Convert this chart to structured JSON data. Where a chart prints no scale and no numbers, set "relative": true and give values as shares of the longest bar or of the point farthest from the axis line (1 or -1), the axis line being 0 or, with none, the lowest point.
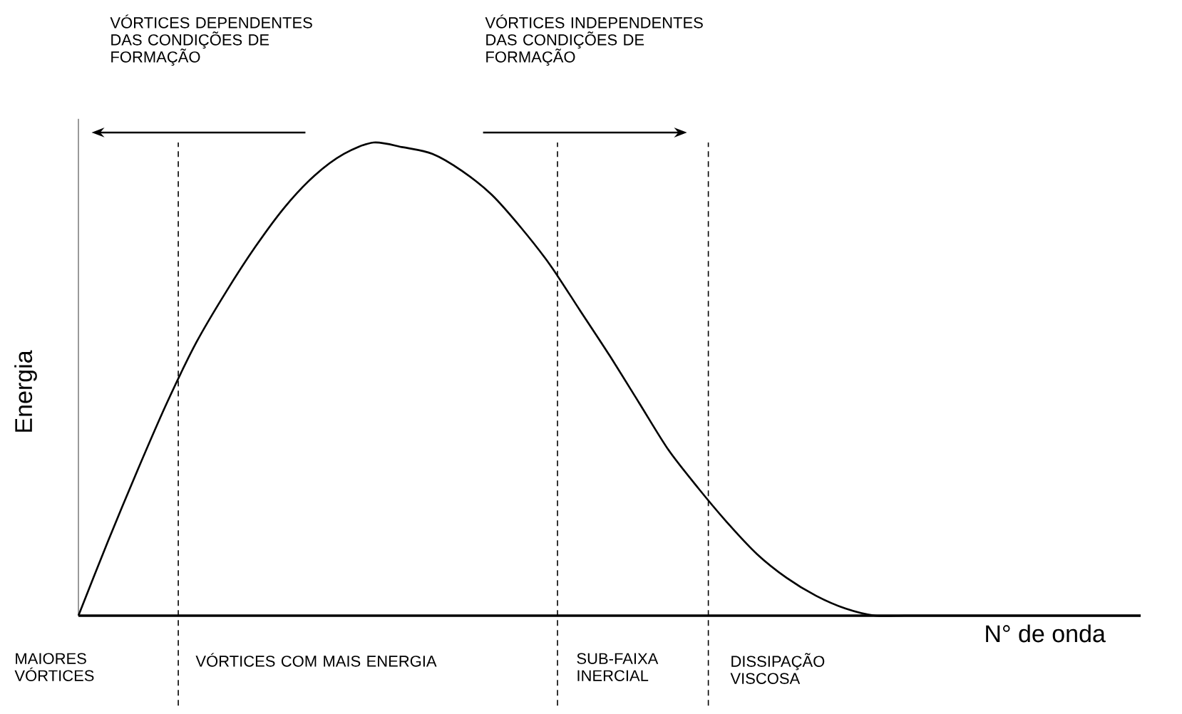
{
  "chart_data": {
    "type": "line",
    "relative": true,
    "xlabel": "N° de onda",
    "ylabel": "Energia",
    "categories": [
      null,
      null,
      null,
      null,
      null,
      null,
      null,
      null,
      null,
      null,
      null,
      null,
      null,
      null,
      null,
      null,
      null,
      null,
      null,
      null,
      null,
      null,
      null,
      null,
      null,
      null,
      null,
      null,
      null,
      null,
      null,
      null,
      null,
      null,
      null,
      null,
      null
    ],
    "series": [
      {
        "color": "#000000",
        "values": [
          0,
          0.157,
          0.307,
          0.45,
          0.578,
          0.684,
          0.78,
          0.864,
          0.93,
          0.976,
          1.0,
          0.99,
          0.976,
          0.94,
          0.89,
          0.82,
          0.74,
          0.645,
          0.55,
          0.45,
          0.35,
          0.27,
          0.196,
          0.13,
          0.08,
          0.042,
          0.015,
          0,
          0,
          0,
          0,
          0,
          0,
          0,
          0,
          0,
          0
        ]
      }
    ],
    "annotations": [
      "VÓRTICES DEPENDENTES DAS CONDIÇÕES DE FORMAÇÃO",
      "VÓRTICES INDEPENDENTES DAS CONDIÇÕES DE FORMAÇÃO",
      "MAIORES VÓRTICES",
      "VÓRTICES COM MAIS ENERGIA",
      "SUB-FAIXA INERCIAL",
      "DISSIPAÇÃO VISCOSA"
    ]
  }
}
